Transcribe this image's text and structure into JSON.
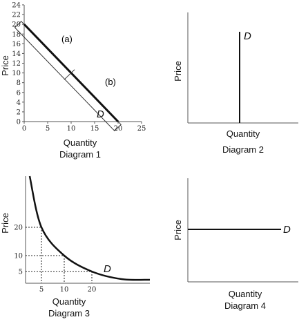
{
  "chart_data": [
    {
      "type": "line",
      "caption": "Diagram 1",
      "xlabel": "Quantity",
      "ylabel": "Price",
      "xlim": [
        0,
        25
      ],
      "ylim": [
        0,
        24
      ],
      "x_ticks": [
        0,
        5,
        10,
        15,
        20,
        25
      ],
      "y_ticks": [
        0,
        2,
        4,
        6,
        8,
        10,
        12,
        14,
        16,
        18,
        20,
        22,
        24
      ],
      "series": [
        {
          "name": "D",
          "x": [
            0,
            20
          ],
          "y": [
            20,
            0
          ]
        }
      ],
      "annotations": [
        "(a)",
        "(b)"
      ]
    },
    {
      "type": "line",
      "caption": "Diagram 2",
      "xlabel": "Quantity",
      "ylabel": "Price",
      "series": [
        {
          "name": "D",
          "shape": "vertical"
        }
      ]
    },
    {
      "type": "line",
      "caption": "Diagram 3",
      "xlabel": "Quantity",
      "ylabel": "Price",
      "x_ticks": [
        5,
        10,
        20
      ],
      "y_ticks": [
        5,
        10,
        20
      ],
      "series": [
        {
          "name": "D",
          "shape": "rectangular hyperbola",
          "points": [
            [
              5,
              20
            ],
            [
              10,
              10
            ],
            [
              20,
              5
            ]
          ]
        }
      ]
    },
    {
      "type": "line",
      "caption": "Diagram 4",
      "xlabel": "Quantity",
      "ylabel": "Price",
      "series": [
        {
          "name": "D",
          "shape": "horizontal"
        }
      ]
    }
  ]
}
